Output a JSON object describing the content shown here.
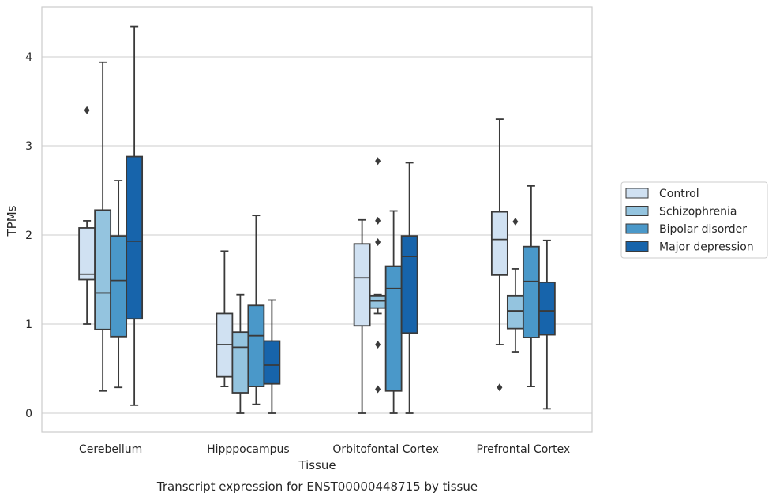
{
  "chart_data": {
    "type": "box",
    "title": "",
    "caption": "Transcript expression for ENST00000448715 by tissue",
    "xlabel": "Tissue",
    "ylabel": "TPMs",
    "ylim": [
      -0.2,
      4.56
    ],
    "yticks": [
      0,
      1,
      2,
      3,
      4
    ],
    "grid": "horizontal",
    "legend_position": "right",
    "categories": [
      "Cerebellum",
      "Hipppocampus",
      "Orbitofontal Cortex",
      "Prefrontal Cortex"
    ],
    "series": [
      {
        "name": "Control",
        "color": "#d0e1f2",
        "boxes": [
          {
            "whisker_low": 1.0,
            "q1": 1.5,
            "median": 1.56,
            "q3": 2.08,
            "whisker_high": 2.16,
            "outliers": [
              3.4
            ]
          },
          {
            "whisker_low": 0.3,
            "q1": 0.41,
            "median": 0.77,
            "q3": 1.12,
            "whisker_high": 1.82,
            "outliers": []
          },
          {
            "whisker_low": 0.0,
            "q1": 0.98,
            "median": 1.52,
            "q3": 1.9,
            "whisker_high": 2.17,
            "outliers": []
          },
          {
            "whisker_low": 0.77,
            "q1": 1.55,
            "median": 1.95,
            "q3": 2.26,
            "whisker_high": 3.3,
            "outliers": [
              0.29
            ]
          }
        ]
      },
      {
        "name": "Schizophrenia",
        "color": "#94c4df",
        "boxes": [
          {
            "whisker_low": 0.25,
            "q1": 0.94,
            "median": 1.35,
            "q3": 2.28,
            "whisker_high": 3.94,
            "outliers": []
          },
          {
            "whisker_low": 0.0,
            "q1": 0.23,
            "median": 0.74,
            "q3": 0.91,
            "whisker_high": 1.33,
            "outliers": []
          },
          {
            "whisker_low": 1.12,
            "q1": 1.18,
            "median": 1.26,
            "q3": 1.32,
            "whisker_high": 1.33,
            "outliers": [
              2.83,
              2.16,
              1.92,
              0.77,
              0.27
            ]
          },
          {
            "whisker_low": 0.69,
            "q1": 0.95,
            "median": 1.15,
            "q3": 1.32,
            "whisker_high": 1.62,
            "outliers": [
              2.15
            ]
          }
        ]
      },
      {
        "name": "Bipolar disorder",
        "color": "#4a98c9",
        "boxes": [
          {
            "whisker_low": 0.29,
            "q1": 0.86,
            "median": 1.49,
            "q3": 1.99,
            "whisker_high": 2.61,
            "outliers": []
          },
          {
            "whisker_low": 0.1,
            "q1": 0.3,
            "median": 0.87,
            "q3": 1.21,
            "whisker_high": 2.22,
            "outliers": []
          },
          {
            "whisker_low": 0.0,
            "q1": 0.25,
            "median": 1.4,
            "q3": 1.65,
            "whisker_high": 2.27,
            "outliers": []
          },
          {
            "whisker_low": 0.3,
            "q1": 0.85,
            "median": 1.48,
            "q3": 1.87,
            "whisker_high": 2.55,
            "outliers": []
          }
        ]
      },
      {
        "name": "Major depression",
        "color": "#1764ab",
        "boxes": [
          {
            "whisker_low": 0.09,
            "q1": 1.06,
            "median": 1.93,
            "q3": 2.88,
            "whisker_high": 4.34,
            "outliers": []
          },
          {
            "whisker_low": 0.0,
            "q1": 0.33,
            "median": 0.54,
            "q3": 0.81,
            "whisker_high": 1.27,
            "outliers": []
          },
          {
            "whisker_low": 0.0,
            "q1": 0.9,
            "median": 1.76,
            "q3": 1.99,
            "whisker_high": 2.81,
            "outliers": []
          },
          {
            "whisker_low": 0.05,
            "q1": 0.88,
            "median": 1.15,
            "q3": 1.47,
            "whisker_high": 1.94,
            "outliers": []
          }
        ]
      }
    ]
  }
}
